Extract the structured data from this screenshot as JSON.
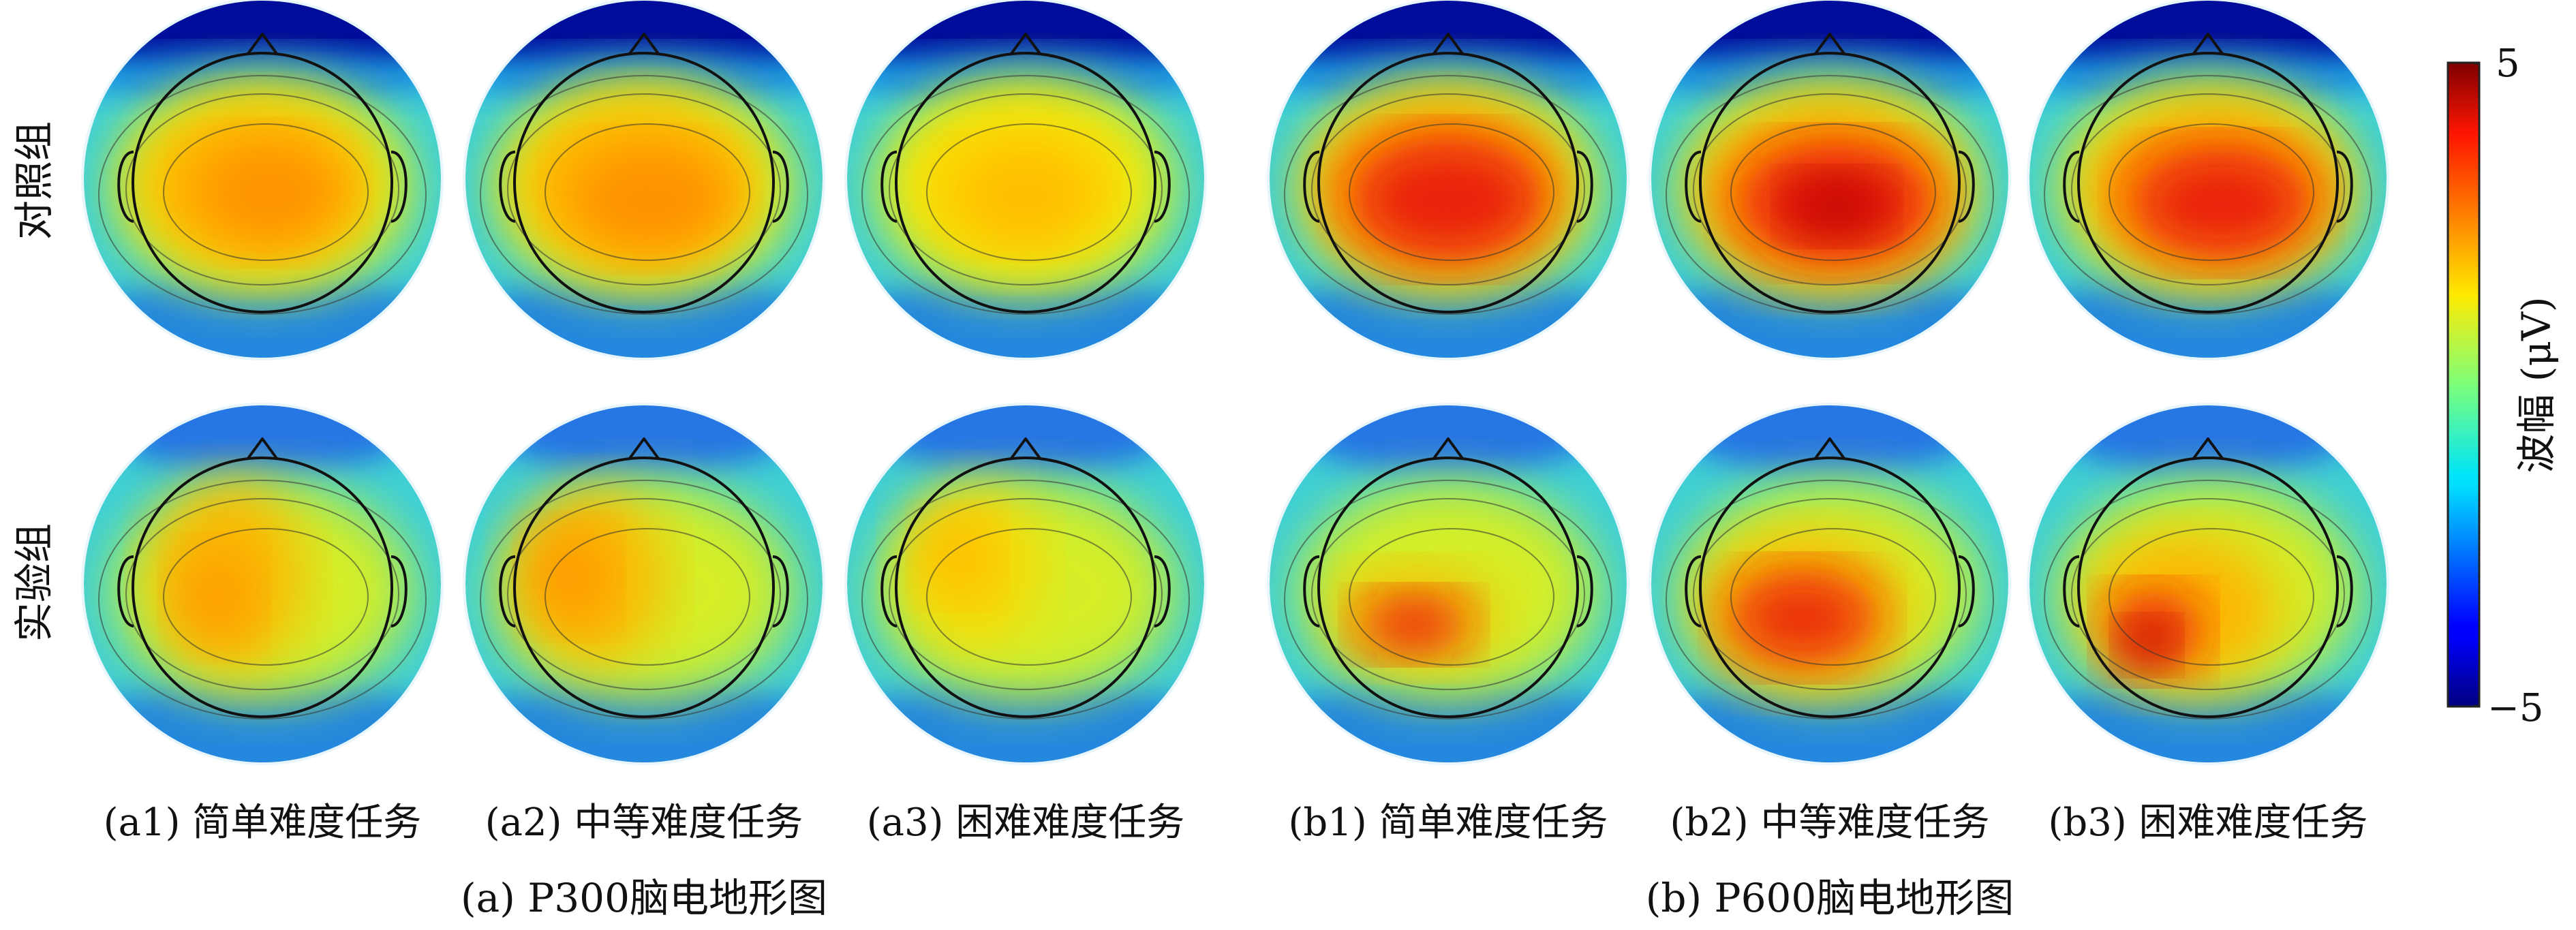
{
  "row_labels": [
    "对照组",
    "实验组"
  ],
  "panels": [
    {
      "id": "a1",
      "caption": "(a1) 简单难度任务"
    },
    {
      "id": "a2",
      "caption": "(a2) 中等难度任务"
    },
    {
      "id": "a3",
      "caption": "(a3) 困难难度任务"
    },
    {
      "id": "b1",
      "caption": "(b1) 简单难度任务"
    },
    {
      "id": "b2",
      "caption": "(b2) 中等难度任务"
    },
    {
      "id": "b3",
      "caption": "(b3) 困难难度任务"
    }
  ],
  "group_captions": {
    "a": "(a) P300脑电地形图",
    "b": "(b) P600脑电地形图"
  },
  "colorbar": {
    "label": "波幅 (μV)",
    "max_label": "5",
    "min_label": "−5",
    "min": -5,
    "max": 5,
    "colormap": "jet"
  },
  "colors": {
    "head_outline": "#111111",
    "contour": "#333333"
  }
}
